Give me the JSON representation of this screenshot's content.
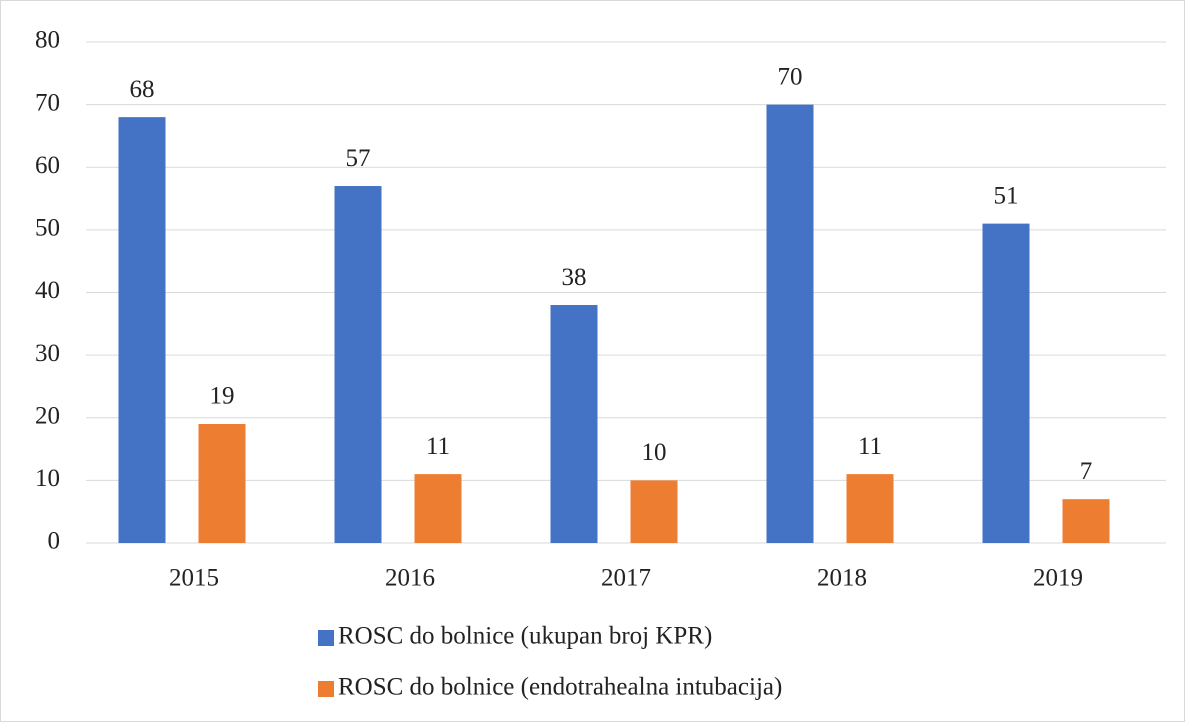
{
  "chart_data": {
    "type": "bar",
    "categories": [
      "2015",
      "2016",
      "2017",
      "2018",
      "2019"
    ],
    "series": [
      {
        "name": "ROSC do bolnice (ukupan broj KPR)",
        "color": "#4472c4",
        "values": [
          68,
          57,
          38,
          70,
          51
        ]
      },
      {
        "name": "ROSC do bolnice (endotrahealna intubacija)",
        "color": "#ed7d31",
        "values": [
          19,
          11,
          10,
          11,
          7
        ]
      }
    ],
    "ylim": [
      0,
      80
    ],
    "yticks": [
      0,
      10,
      20,
      30,
      40,
      50,
      60,
      70,
      80
    ],
    "grid": true,
    "legend": "bottom"
  }
}
